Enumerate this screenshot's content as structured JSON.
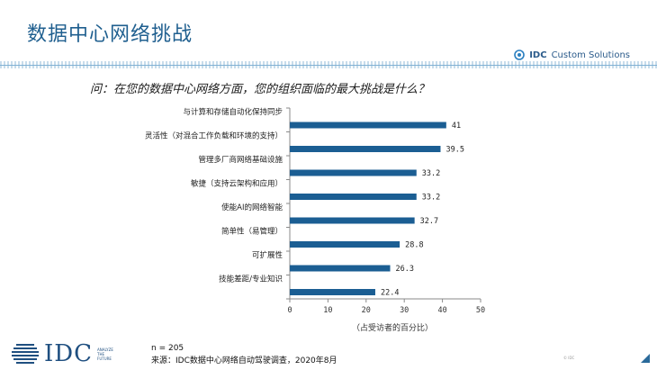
{
  "page": {
    "title": "数据中心网络挑战",
    "brand": {
      "name": "IDC",
      "suffix": "Custom Solutions"
    },
    "question": "问：在您的数据中心网络方面，您的组织面临的最大挑战是什么？",
    "footer": {
      "logo_text": "IDC",
      "logo_tagline": [
        "ANALYZE",
        "THE",
        "FUTURE"
      ],
      "sample": "n = 205",
      "source": "来源：IDC数据中心网络自动驾驶调查，2020年8月",
      "copyright": "© IDC"
    }
  },
  "colors": {
    "bar": "#1b5e93",
    "axis": "#8a8a8a",
    "title": "#1f5f8f"
  },
  "chart_data": {
    "type": "bar",
    "orientation": "horizontal",
    "categories": [
      "与计算和存储自动化保持同步",
      "灵活性（对混合工作负载和环境的支持）",
      "管理多厂商网络基础设施",
      "敏捷（支持云架构和应用）",
      "使能AI的网络智能",
      "简单性（易管理）",
      "可扩展性",
      "技能差距/专业知识"
    ],
    "values": [
      41,
      39.5,
      33.2,
      33.2,
      32.7,
      28.8,
      26.3,
      22.4
    ],
    "value_labels": [
      "41",
      "39.5",
      "33.2",
      "33.2",
      "32.7",
      "28.8",
      "26.3",
      "22.4"
    ],
    "xlim": [
      0,
      50
    ],
    "xticks": [
      "0",
      "10",
      "20",
      "30",
      "40",
      "50"
    ],
    "xlabel": "（占受访者的百分比）",
    "grid": false
  }
}
